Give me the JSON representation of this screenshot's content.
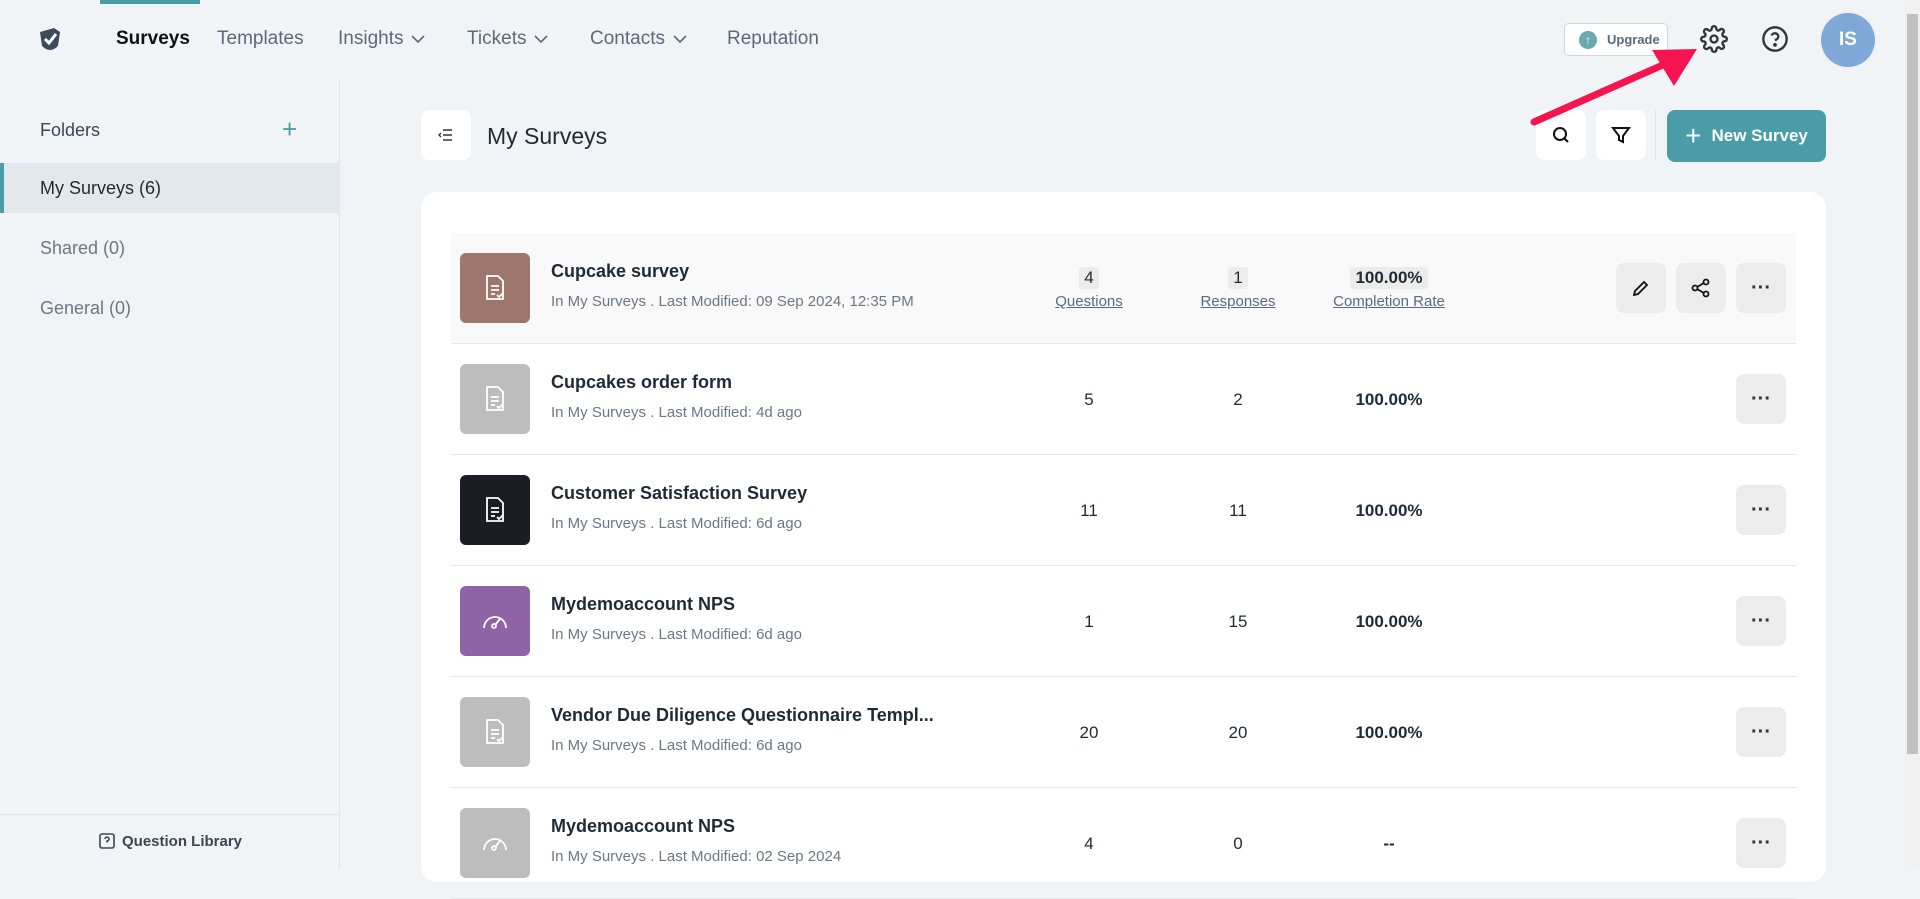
{
  "nav": {
    "items": [
      {
        "label": "Surveys",
        "active": true
      },
      {
        "label": "Templates"
      },
      {
        "label": "Insights",
        "dropdown": true
      },
      {
        "label": "Tickets",
        "dropdown": true
      },
      {
        "label": "Contacts",
        "dropdown": true
      },
      {
        "label": "Reputation"
      }
    ],
    "upgrade": "Upgrade",
    "avatar": "IS"
  },
  "sidebar": {
    "heading": "Folders",
    "folders": [
      {
        "label": "My Surveys (6)",
        "active": true
      },
      {
        "label": "Shared (0)"
      },
      {
        "label": "General (0)"
      }
    ],
    "question_library": "Question Library"
  },
  "main": {
    "title": "My Surveys",
    "new_survey": "New Survey"
  },
  "labels": {
    "questions": "Questions",
    "responses": "Responses",
    "completion": "Completion Rate"
  },
  "surveys": [
    {
      "title": "Cupcake survey",
      "meta": "In My Surveys . Last Modified: 09 Sep 2024, 12:35 PM",
      "questions": "4",
      "responses": "1",
      "completion": "100.00%",
      "color": "#9e776c",
      "icon": "document-check-icon"
    },
    {
      "title": "Cupcakes order form",
      "meta": "In My Surveys . Last Modified: 4d ago",
      "questions": "5",
      "responses": "2",
      "completion": "100.00%",
      "color": "#bdbdbd",
      "icon": "document-check-icon"
    },
    {
      "title": "Customer Satisfaction Survey",
      "meta": "In My Surveys . Last Modified: 6d ago",
      "questions": "11",
      "responses": "11",
      "completion": "100.00%",
      "color": "#1c1c24",
      "icon": "document-check-icon"
    },
    {
      "title": "Mydemoaccount NPS",
      "meta": "In My Surveys . Last Modified: 6d ago",
      "questions": "1",
      "responses": "15",
      "completion": "100.00%",
      "color": "#8f63a6",
      "icon": "gauge-icon"
    },
    {
      "title": "Vendor Due Diligence Questionnaire Templ...",
      "meta": "In My Surveys . Last Modified: 6d ago",
      "questions": "20",
      "responses": "20",
      "completion": "100.00%",
      "color": "#bdbdbd",
      "icon": "document-check-icon"
    },
    {
      "title": "Mydemoaccount NPS",
      "meta": "In My Surveys . Last Modified: 02 Sep 2024",
      "questions": "4",
      "responses": "0",
      "completion": "--",
      "color": "#bdbdbd",
      "icon": "gauge-icon"
    }
  ],
  "colors": {
    "accent": "#4a9ca6",
    "annotation_arrow": "#f5144f"
  }
}
